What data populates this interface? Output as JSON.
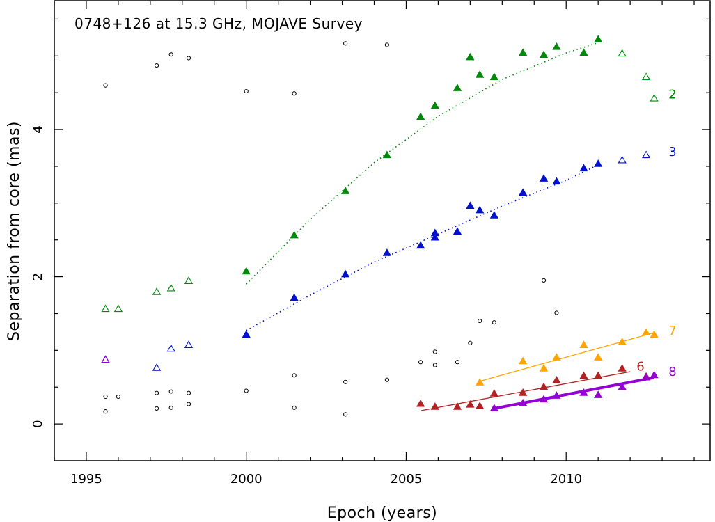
{
  "chart_data": {
    "type": "scatter",
    "title": "0748+126 at 15.3 GHz, MOJAVE Survey",
    "xlabel": "Epoch (years)",
    "ylabel": "Separation from core (mas)",
    "xlim": [
      1994,
      2014.5
    ],
    "ylim": [
      -0.5,
      5.75
    ],
    "xticks": [
      1995,
      2000,
      2005,
      2010
    ],
    "xtick_labels": [
      "1995",
      "2000",
      "2005",
      "2010"
    ],
    "yticks": [
      0,
      2,
      4
    ],
    "ytick_labels": [
      "0",
      "2",
      "4"
    ],
    "grid": false,
    "legend": "none",
    "unassigned_points": [
      [
        1995.6,
        4.6
      ],
      [
        1997.2,
        4.87
      ],
      [
        1997.65,
        5.02
      ],
      [
        1998.2,
        4.97
      ],
      [
        2000.0,
        4.52
      ],
      [
        2001.5,
        4.49
      ],
      [
        2003.1,
        5.17
      ],
      [
        2004.4,
        5.15
      ],
      [
        1995.6,
        0.37
      ],
      [
        1996.0,
        0.37
      ],
      [
        1997.2,
        0.42
      ],
      [
        1997.65,
        0.44
      ],
      [
        1998.2,
        0.42
      ],
      [
        1995.6,
        0.17
      ],
      [
        1997.2,
        0.21
      ],
      [
        1997.65,
        0.22
      ],
      [
        1998.2,
        0.27
      ],
      [
        2000.0,
        0.45
      ],
      [
        2001.5,
        0.66
      ],
      [
        2003.1,
        0.57
      ],
      [
        2004.4,
        0.6
      ],
      [
        2001.5,
        0.22
      ],
      [
        2003.1,
        0.13
      ],
      [
        2005.45,
        0.84
      ],
      [
        2005.9,
        0.98
      ],
      [
        2005.9,
        0.8
      ],
      [
        2006.6,
        0.84
      ],
      [
        2007.0,
        1.1
      ],
      [
        2007.3,
        1.4
      ],
      [
        2007.75,
        1.38
      ],
      [
        2009.3,
        1.95
      ],
      [
        2009.7,
        1.51
      ]
    ],
    "series": [
      {
        "name": "2",
        "color": "#00880a",
        "points": [
          [
            2000.0,
            2.08
          ],
          [
            2001.5,
            2.57
          ],
          [
            2003.1,
            3.17
          ],
          [
            2004.4,
            3.66
          ],
          [
            2005.45,
            4.18
          ],
          [
            2005.9,
            4.33
          ],
          [
            2006.6,
            4.57
          ],
          [
            2007.0,
            4.99
          ],
          [
            2007.3,
            4.75
          ],
          [
            2007.75,
            4.72
          ],
          [
            2008.65,
            5.05
          ],
          [
            2009.3,
            5.02
          ],
          [
            2009.7,
            5.13
          ],
          [
            2010.55,
            5.05
          ],
          [
            2011.0,
            5.23
          ]
        ],
        "open_points": [
          [
            1995.6,
            1.57
          ],
          [
            1996.0,
            1.57
          ],
          [
            1997.2,
            1.8
          ],
          [
            1997.65,
            1.85
          ],
          [
            1998.2,
            1.95
          ],
          [
            2011.75,
            5.04
          ],
          [
            2012.5,
            4.72
          ],
          [
            2012.75,
            4.43
          ]
        ],
        "fit": {
          "style": "dotted",
          "points": [
            [
              2000.0,
              1.9
            ],
            [
              2002.0,
              2.78
            ],
            [
              2004.0,
              3.55
            ],
            [
              2006.0,
              4.18
            ],
            [
              2008.0,
              4.68
            ],
            [
              2010.0,
              5.04
            ],
            [
              2011.0,
              5.18
            ]
          ]
        }
      },
      {
        "name": "3",
        "color": "#0010cc",
        "points": [
          [
            2000.0,
            1.22
          ],
          [
            2001.5,
            1.72
          ],
          [
            2003.1,
            2.04
          ],
          [
            2004.4,
            2.33
          ],
          [
            2005.45,
            2.43
          ],
          [
            2005.9,
            2.6
          ],
          [
            2005.9,
            2.54
          ],
          [
            2006.6,
            2.62
          ],
          [
            2007.0,
            2.97
          ],
          [
            2007.3,
            2.91
          ],
          [
            2007.75,
            2.84
          ],
          [
            2008.65,
            3.15
          ],
          [
            2009.3,
            3.34
          ],
          [
            2009.7,
            3.3
          ],
          [
            2010.55,
            3.48
          ],
          [
            2011.0,
            3.54
          ]
        ],
        "open_points": [
          [
            1995.6,
            0.88
          ],
          [
            1997.2,
            0.77
          ],
          [
            1997.65,
            1.03
          ],
          [
            1998.2,
            1.08
          ],
          [
            2011.75,
            3.59
          ],
          [
            2012.5,
            3.66
          ]
        ],
        "fit": {
          "style": "dotted",
          "points": [
            [
              2000.0,
              1.27
            ],
            [
              2002.0,
              1.75
            ],
            [
              2004.0,
              2.2
            ],
            [
              2006.0,
              2.58
            ],
            [
              2008.0,
              2.96
            ],
            [
              2010.0,
              3.31
            ],
            [
              2011.0,
              3.52
            ]
          ]
        }
      },
      {
        "name": "7",
        "color": "#ffa500",
        "points": [
          [
            2007.3,
            0.57
          ],
          [
            2008.65,
            0.86
          ],
          [
            2009.3,
            0.76
          ],
          [
            2009.7,
            0.91
          ],
          [
            2010.55,
            1.08
          ],
          [
            2011.0,
            0.91
          ],
          [
            2011.75,
            1.12
          ],
          [
            2012.5,
            1.25
          ],
          [
            2012.75,
            1.22
          ]
        ],
        "open_points": [],
        "fit": {
          "style": "solid",
          "points": [
            [
              2007.3,
              0.58
            ],
            [
              2012.75,
              1.24
            ]
          ]
        }
      },
      {
        "name": "6",
        "color": "#b22222",
        "points": [
          [
            2005.45,
            0.28
          ],
          [
            2005.9,
            0.24
          ],
          [
            2006.6,
            0.24
          ],
          [
            2007.0,
            0.27
          ],
          [
            2007.3,
            0.25
          ],
          [
            2007.75,
            0.42
          ],
          [
            2008.65,
            0.43
          ],
          [
            2009.3,
            0.51
          ],
          [
            2009.7,
            0.6
          ],
          [
            2010.55,
            0.66
          ],
          [
            2011.0,
            0.66
          ],
          [
            2011.75,
            0.76
          ],
          [
            2012.5,
            0.65
          ]
        ],
        "open_points": [],
        "fit": {
          "style": "solid",
          "points": [
            [
              2005.45,
              0.18
            ],
            [
              2012.0,
              0.71
            ]
          ]
        }
      },
      {
        "name": "8",
        "color": "#9400d3",
        "points": [
          [
            2007.75,
            0.22
          ],
          [
            2008.65,
            0.29
          ],
          [
            2009.3,
            0.34
          ],
          [
            2009.7,
            0.39
          ],
          [
            2010.55,
            0.43
          ],
          [
            2011.0,
            0.4
          ],
          [
            2011.75,
            0.51
          ],
          [
            2012.5,
            0.64
          ],
          [
            2012.75,
            0.67
          ]
        ],
        "open_points": [
          [
            1995.6,
            0.88
          ]
        ],
        "fit": {
          "style": "thick",
          "points": [
            [
              2007.75,
              0.21
            ],
            [
              2012.75,
              0.63
            ]
          ]
        }
      }
    ],
    "series_labels": [
      {
        "text": "2",
        "at": [
          2013.2,
          4.48
        ]
      },
      {
        "text": "3",
        "at": [
          2013.2,
          3.7
        ]
      },
      {
        "text": "7",
        "at": [
          2013.2,
          1.27
        ]
      },
      {
        "text": "6",
        "at": [
          2012.2,
          0.78
        ]
      },
      {
        "text": "8",
        "at": [
          2013.2,
          0.71
        ]
      }
    ]
  }
}
